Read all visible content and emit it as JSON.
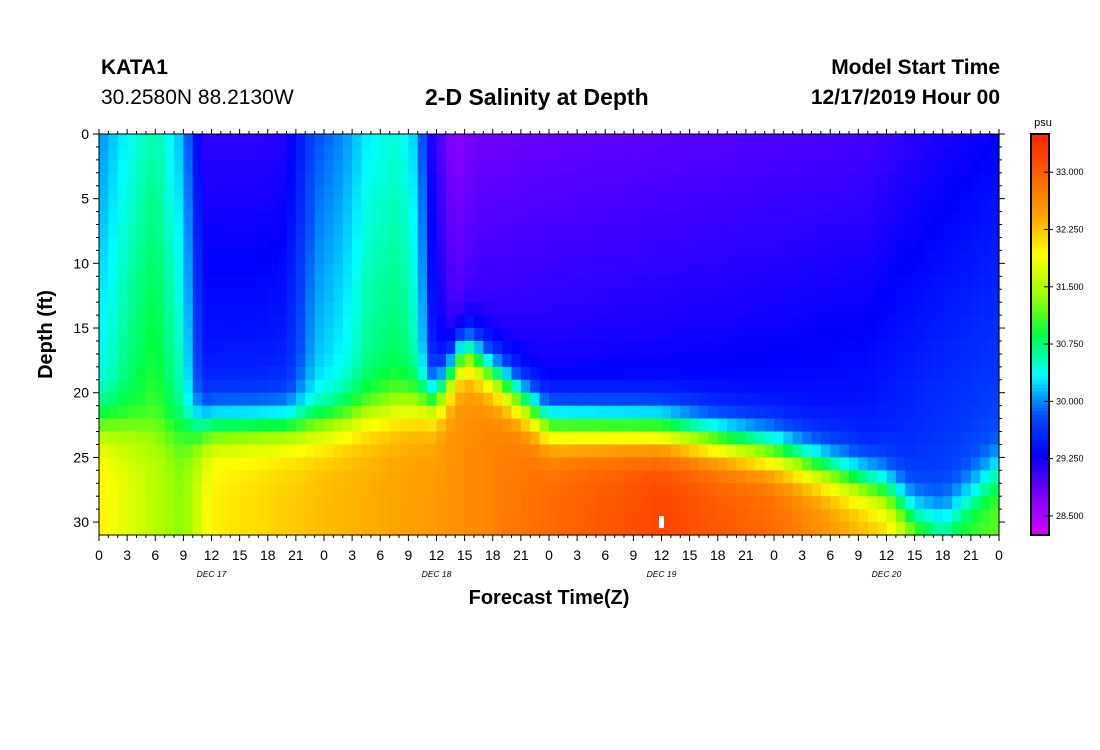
{
  "header": {
    "station_id": "KATA1",
    "station_location": "30.2580N 88.2130W",
    "model_label": "Model Start Time",
    "model_time": "12/17/2019 Hour 00"
  },
  "chart_data": {
    "type": "heatmap",
    "title": "2-D Salinity at Depth",
    "xlabel": "Forecast Time(Z)",
    "ylabel": "Depth (ft)",
    "colorbar_unit": "psu",
    "x_range_hours": [
      0,
      96
    ],
    "y_range_ft": [
      0,
      31
    ],
    "y_inverted": true,
    "x_tick_labels": [
      "0",
      "3",
      "6",
      "9",
      "12",
      "15",
      "18",
      "21",
      "0",
      "3",
      "6",
      "9",
      "12",
      "15",
      "18",
      "21",
      "0",
      "3",
      "6",
      "9",
      "12",
      "15",
      "18",
      "21",
      "0",
      "3",
      "6",
      "9",
      "12",
      "15",
      "18",
      "21",
      "0"
    ],
    "day_labels": [
      {
        "label": "DEC 17",
        "hour": 12
      },
      {
        "label": "DEC 18",
        "hour": 36
      },
      {
        "label": "DEC 19",
        "hour": 60
      },
      {
        "label": "DEC 20",
        "hour": 84
      }
    ],
    "y_ticks": [
      0,
      5,
      10,
      15,
      20,
      25,
      30
    ],
    "colorbar_range": [
      28.25,
      33.5
    ],
    "colorbar_ticks": [
      "33.000",
      "32.250",
      "31.500",
      "30.750",
      "30.000",
      "29.250",
      "28.500"
    ],
    "colorbar_tick_values": [
      33.0,
      32.25,
      31.5,
      30.75,
      30.0,
      29.25,
      28.5
    ],
    "colormap": [
      "#d800ff",
      "#7800ff",
      "#0000ff",
      "#0050ff",
      "#00ffff",
      "#00ff40",
      "#a0ff00",
      "#ffff00",
      "#ffa000",
      "#ff6000",
      "#ff2000"
    ],
    "marker": {
      "hour": 60,
      "depth_ft": 30
    },
    "halocline_depth_ft": [
      {
        "hour": 0,
        "depth": 22.5
      },
      {
        "hour": 8,
        "depth": 23
      },
      {
        "hour": 12,
        "depth": 22.5
      },
      {
        "hour": 24,
        "depth": 22.5
      },
      {
        "hour": 36,
        "depth": 20.5
      },
      {
        "hour": 39,
        "depth": 16.5
      },
      {
        "hour": 42,
        "depth": 18.5
      },
      {
        "hour": 45,
        "depth": 20.5
      },
      {
        "hour": 48,
        "depth": 22.5
      },
      {
        "hour": 60,
        "depth": 22.8
      },
      {
        "hour": 72,
        "depth": 24.5
      },
      {
        "hour": 84,
        "depth": 27.5
      },
      {
        "hour": 87,
        "depth": 29.5
      },
      {
        "hour": 90,
        "depth": 30
      },
      {
        "hour": 96,
        "depth": 26
      }
    ],
    "surface_salinity": [
      {
        "hour": 0,
        "value": 30.0
      },
      {
        "hour": 3,
        "value": 30.35
      },
      {
        "hour": 6,
        "value": 30.6
      },
      {
        "hour": 9,
        "value": 30.1
      },
      {
        "hour": 11,
        "value": 29.1
      },
      {
        "hour": 14,
        "value": 29.1
      },
      {
        "hour": 17,
        "value": 29.1
      },
      {
        "hour": 20,
        "value": 29.15
      },
      {
        "hour": 23,
        "value": 29.8
      },
      {
        "hour": 26,
        "value": 30.0
      },
      {
        "hour": 29,
        "value": 30.35
      },
      {
        "hour": 32,
        "value": 30.45
      },
      {
        "hour": 34,
        "value": 30.15
      },
      {
        "hour": 35.5,
        "value": 29.15
      },
      {
        "hour": 38,
        "value": 28.65
      },
      {
        "hour": 40,
        "value": 28.8
      },
      {
        "hour": 48,
        "value": 28.85
      },
      {
        "hour": 60,
        "value": 28.9
      },
      {
        "hour": 72,
        "value": 28.95
      },
      {
        "hour": 82,
        "value": 29.0
      },
      {
        "hour": 86,
        "value": 29.1
      },
      {
        "hour": 96,
        "value": 29.3
      }
    ],
    "bottom_salinity": [
      {
        "hour": 0,
        "value": 32.0
      },
      {
        "hour": 9,
        "value": 31.3
      },
      {
        "hour": 12,
        "value": 32.0
      },
      {
        "hour": 24,
        "value": 32.3
      },
      {
        "hour": 36,
        "value": 32.5
      },
      {
        "hour": 48,
        "value": 32.9
      },
      {
        "hour": 60,
        "value": 33.2
      },
      {
        "hour": 72,
        "value": 32.9
      },
      {
        "hour": 84,
        "value": 32.2
      },
      {
        "hour": 90,
        "value": 31.0
      },
      {
        "hour": 96,
        "value": 31.2
      }
    ]
  }
}
